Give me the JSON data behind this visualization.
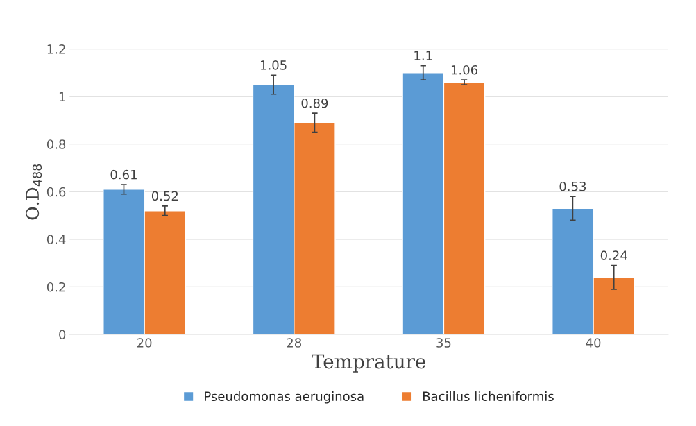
{
  "chart_data": {
    "type": "bar",
    "xlabel": "Temprature",
    "ylabel": "O.D$_{488}$",
    "categories": [
      "20",
      "28",
      "35",
      "40"
    ],
    "series": [
      {
        "name": "Pseudomonas aeruginosa",
        "color": "#5b9bd5",
        "values": [
          0.61,
          1.05,
          1.1,
          0.53
        ],
        "errors": [
          0.02,
          0.04,
          0.03,
          0.05
        ]
      },
      {
        "name": "Bacillus licheniformis",
        "color": "#ed7d31",
        "values": [
          0.52,
          0.89,
          1.06,
          0.24
        ],
        "errors": [
          0.02,
          0.04,
          0.01,
          0.05
        ]
      }
    ],
    "ylim": [
      0,
      1.2
    ],
    "yticks": [
      0,
      0.2,
      0.4,
      0.6,
      0.8,
      1,
      1.2
    ],
    "grid": "y",
    "legend": "bottom",
    "data_labels": true
  }
}
